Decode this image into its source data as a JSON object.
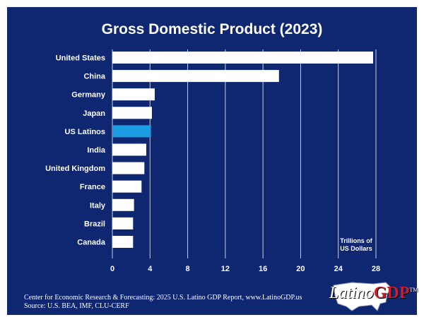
{
  "chart_data": {
    "type": "bar",
    "orientation": "horizontal",
    "title": "Gross Domestic Product (2023)",
    "categories": [
      "United States",
      "China",
      "Germany",
      "Japan",
      "US Latinos",
      "India",
      "United Kingdom",
      "France",
      "Italy",
      "Brazil",
      "Canada"
    ],
    "values": [
      27.7,
      17.7,
      4.5,
      4.2,
      4.1,
      3.6,
      3.4,
      3.1,
      2.3,
      2.2,
      2.2
    ],
    "highlight_category": "US Latinos",
    "xlim": [
      0,
      28
    ],
    "xticks": [
      0,
      4,
      8,
      12,
      16,
      20,
      24,
      28
    ],
    "unit_label_line1": "Trillions of",
    "unit_label_line2": "US Dollars",
    "grid": true
  },
  "colors": {
    "background": "#0f2670",
    "bar": "#ffffff",
    "highlight": "#1b9be0",
    "grid": "#c8cde0"
  },
  "footer": {
    "line1": "Center for Economic Research & Forecasting: 2025 U.S. Latino GDP Report, www.LatinoGDP.us",
    "line2": "Source: U.S. BEA, IMF, CLU-CERF"
  },
  "logo": {
    "text_main": "Latino",
    "text_accent": "GDP",
    "tm": "TM"
  }
}
